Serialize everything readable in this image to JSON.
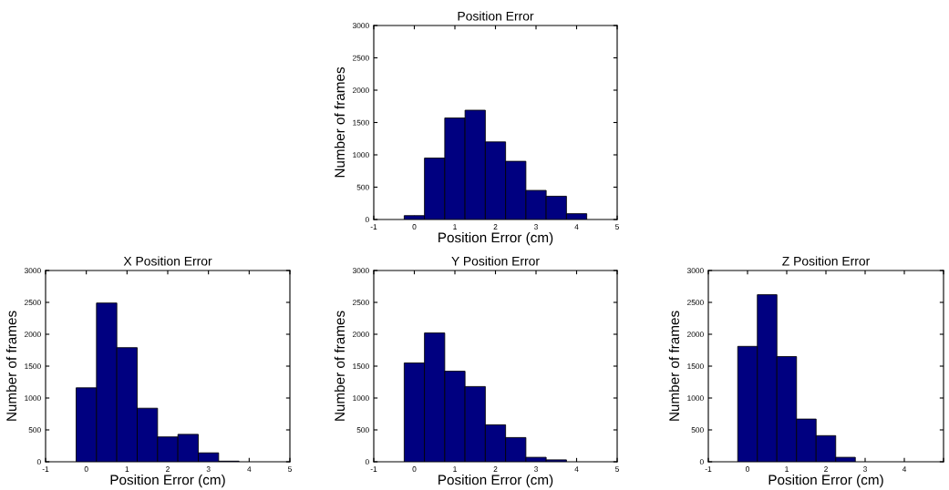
{
  "chart_data": [
    {
      "type": "histogram",
      "title": "Position Error",
      "xlabel": "Position Error (cm)",
      "ylabel": "Number of frames",
      "color": "#000080",
      "bins": [
        -0.25,
        0.25,
        0.75,
        1.25,
        1.75,
        2.25,
        2.75,
        3.25,
        3.75,
        4.25
      ],
      "values": [
        60,
        950,
        1570,
        1690,
        1200,
        900,
        450,
        360,
        90
      ],
      "xlim": [
        -1,
        5
      ],
      "xticks": [
        -1,
        0,
        1,
        2,
        3,
        4,
        5
      ],
      "ylim": [
        0,
        3000
      ],
      "yticks": [
        0,
        500,
        1000,
        1500,
        2000,
        2500,
        3000
      ],
      "grid": false
    },
    {
      "type": "histogram",
      "title": "X Position Error",
      "xlabel": "Position Error (cm)",
      "ylabel": "Number of frames",
      "color": "#000080",
      "bins": [
        -0.25,
        0.25,
        0.75,
        1.25,
        1.75,
        2.25,
        2.75,
        3.25,
        3.75
      ],
      "values": [
        1160,
        2490,
        1790,
        840,
        390,
        430,
        140,
        10
      ],
      "xlim": [
        -1,
        5
      ],
      "xticks": [
        -1,
        0,
        1,
        2,
        3,
        4,
        5
      ],
      "ylim": [
        0,
        3000
      ],
      "yticks": [
        0,
        500,
        1000,
        1500,
        2000,
        2500,
        3000
      ],
      "grid": false
    },
    {
      "type": "histogram",
      "title": "Y Position Error",
      "xlabel": "Position Error (cm)",
      "ylabel": "Number of frames",
      "color": "#000080",
      "bins": [
        -0.25,
        0.25,
        0.75,
        1.25,
        1.75,
        2.25,
        2.75,
        3.25,
        3.75
      ],
      "values": [
        1550,
        2020,
        1420,
        1180,
        580,
        380,
        70,
        30
      ],
      "xlim": [
        -1,
        5
      ],
      "xticks": [
        -1,
        0,
        1,
        2,
        3,
        4,
        5
      ],
      "ylim": [
        0,
        3000
      ],
      "yticks": [
        0,
        500,
        1000,
        1500,
        2000,
        2500,
        3000
      ],
      "grid": false
    },
    {
      "type": "histogram",
      "title": "Z Position Error",
      "xlabel": "Position Error (cm)",
      "ylabel": "Number of frames",
      "color": "#000080",
      "bins": [
        -0.25,
        0.25,
        0.75,
        1.25,
        1.75,
        2.25,
        2.75
      ],
      "values": [
        1810,
        2620,
        1650,
        670,
        410,
        70
      ],
      "xlim": [
        -1,
        5
      ],
      "xticks": [
        -1,
        0,
        1,
        2,
        3,
        4,
        {
          "value": 5,
          "label": null
        }
      ],
      "ylim": [
        0,
        3000
      ],
      "yticks": [
        0,
        500,
        1000,
        1500,
        2000,
        2500,
        3000
      ],
      "grid": false
    }
  ]
}
